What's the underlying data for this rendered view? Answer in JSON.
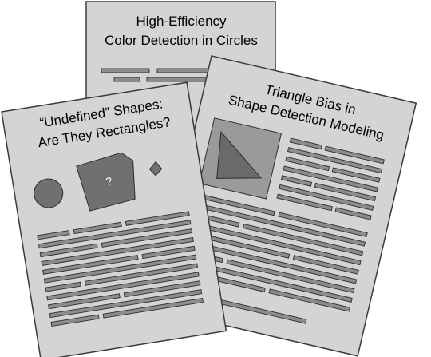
{
  "papers": [
    {
      "id": "back",
      "title_lines": [
        "High-Efficiency",
        "Color Detection in Circles"
      ]
    },
    {
      "id": "left",
      "title_lines": [
        "“Undefined” Shapes:",
        "Are They Rectangles?"
      ],
      "shape_label": "?"
    },
    {
      "id": "right",
      "title_lines": [
        "Triangle Bias in",
        "Shape Detection Modeling"
      ]
    }
  ],
  "colors": {
    "page": "#d4d4d4",
    "outline": "#3a3a3a",
    "text_line": "#8c8c8c",
    "shape": "#707070",
    "figure_bg": "#9a9a9a",
    "figure_tri": "#6a6a6a"
  },
  "icons": [
    "circle-shape",
    "pentagon-shape",
    "diamond-shape",
    "triangle-figure"
  ]
}
